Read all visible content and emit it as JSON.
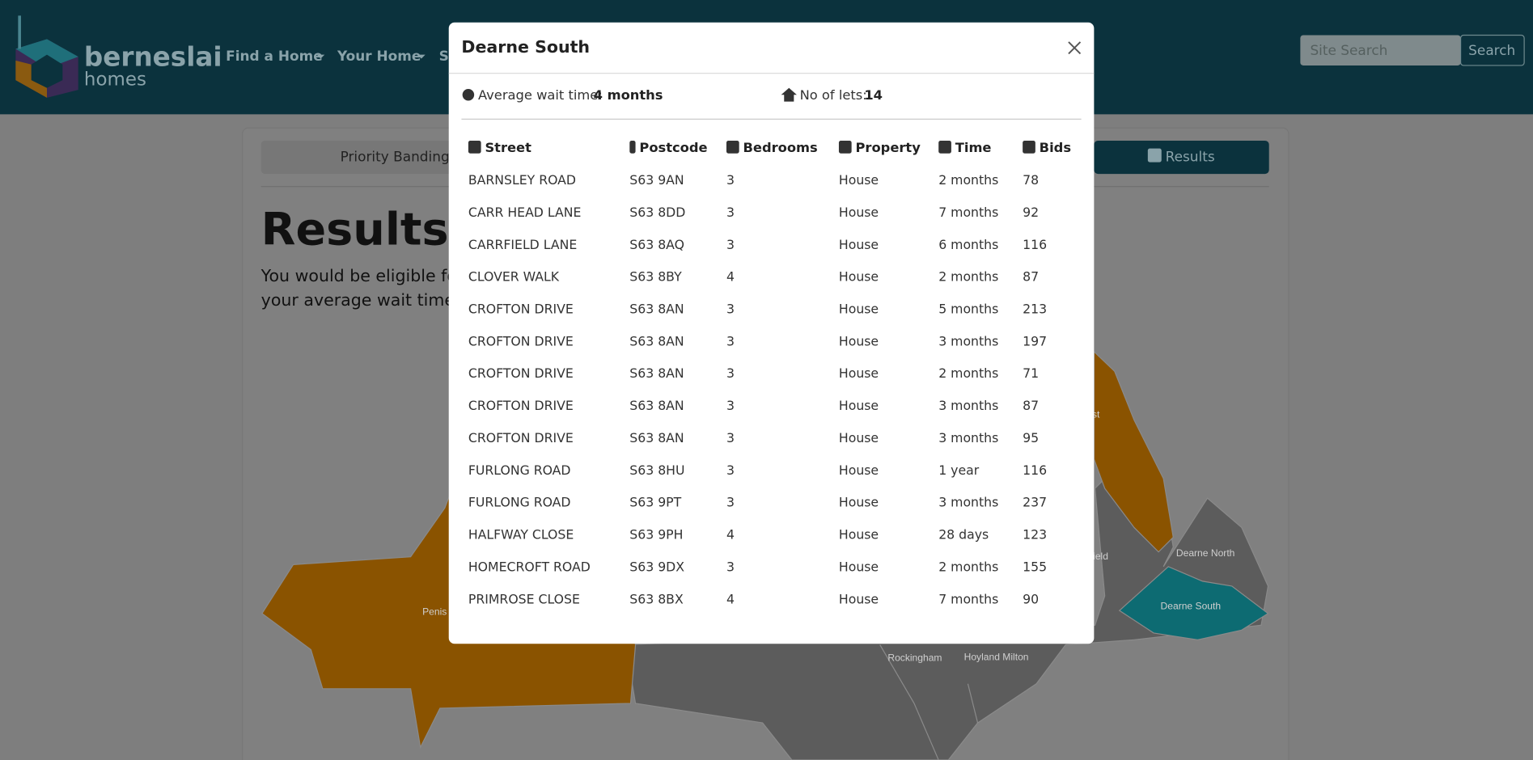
{
  "header": {
    "logo": [
      "berneslai",
      "homes"
    ],
    "nav": [
      "Find a Home",
      "Your Home",
      "Se"
    ],
    "search_placeholder": "Site Search",
    "search_button": "Search"
  },
  "tabs": [
    "Priority Banding",
    "Results"
  ],
  "page": {
    "title": "Results",
    "text": [
      "You would be eligible for",
      "your average wait times"
    ]
  },
  "map": {
    "labels": [
      "Penis",
      "st",
      "ield",
      "Dearne North",
      "Dearne South",
      "Rockingham",
      "Hoyland Milton"
    ]
  },
  "modal": {
    "title": "Dearne South",
    "wait_label": "Average wait time:",
    "wait_value": "4 months",
    "lets_label": "No of lets:",
    "lets_value": "14",
    "table": {
      "columns": [
        "Street",
        "Postcode",
        "Bedrooms",
        "Property",
        "Time",
        "Bids"
      ],
      "rows": [
        [
          "BARNSLEY ROAD",
          "S63 9AN",
          "3",
          "House",
          "2 months",
          "78"
        ],
        [
          "CARR HEAD LANE",
          "S63 8DD",
          "3",
          "House",
          "7 months",
          "92"
        ],
        [
          "CARRFIELD LANE",
          "S63 8AQ",
          "3",
          "House",
          "6 months",
          "116"
        ],
        [
          "CLOVER WALK",
          "S63 8BY",
          "4",
          "House",
          "2 months",
          "87"
        ],
        [
          "CROFTON DRIVE",
          "S63 8AN",
          "3",
          "House",
          "5 months",
          "213"
        ],
        [
          "CROFTON DRIVE",
          "S63 8AN",
          "3",
          "House",
          "3 months",
          "197"
        ],
        [
          "CROFTON DRIVE",
          "S63 8AN",
          "3",
          "House",
          "2 months",
          "71"
        ],
        [
          "CROFTON DRIVE",
          "S63 8AN",
          "3",
          "House",
          "3 months",
          "87"
        ],
        [
          "CROFTON DRIVE",
          "S63 8AN",
          "3",
          "House",
          "3 months",
          "95"
        ],
        [
          "FURLONG ROAD",
          "S63 8HU",
          "3",
          "House",
          "1 year",
          "116"
        ],
        [
          "FURLONG ROAD",
          "S63 9PT",
          "3",
          "House",
          "3 months",
          "237"
        ],
        [
          "HALFWAY CLOSE",
          "S63 9PH",
          "4",
          "House",
          "28 days",
          "123"
        ],
        [
          "HOMECROFT ROAD",
          "S63 9DX",
          "3",
          "House",
          "2 months",
          "155"
        ],
        [
          "PRIMROSE CLOSE",
          "S63 8BX",
          "4",
          "House",
          "7 months",
          "90"
        ]
      ]
    }
  }
}
